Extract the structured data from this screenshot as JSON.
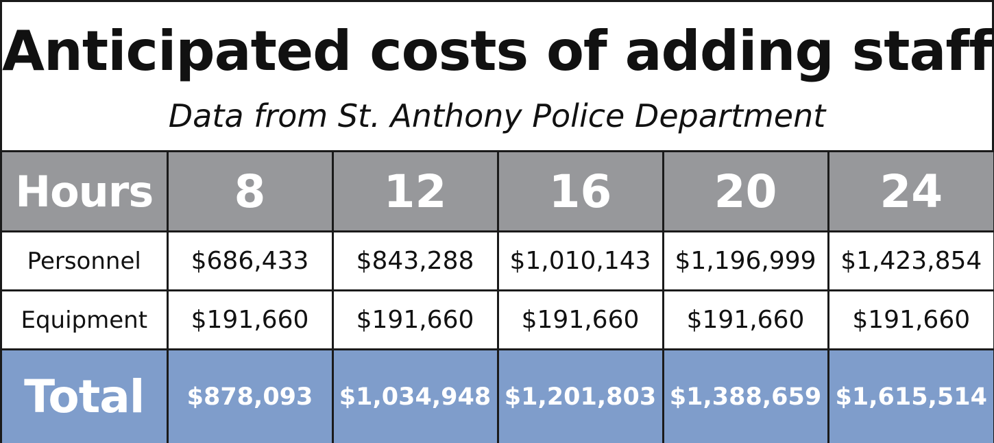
{
  "chart_data": {
    "type": "table",
    "title": "Anticipated costs of adding staff",
    "subtitle": "Data from St. Anthony Police Department",
    "header_label": "Hours",
    "columns": [
      "8",
      "12",
      "16",
      "20",
      "24"
    ],
    "rows": [
      {
        "label": "Personnel",
        "values": [
          "$686,433",
          "$843,288",
          "$1,010,143",
          "$1,196,999",
          "$1,423,854"
        ]
      },
      {
        "label": "Equipment",
        "values": [
          "$191,660",
          "$191,660",
          "$191,660",
          "$191,660",
          "$191,660"
        ]
      },
      {
        "label": "Total",
        "values": [
          "$878,093",
          "$1,034,948",
          "$1,201,803",
          "$1,388,659",
          "$1,615,514"
        ]
      }
    ],
    "numeric": {
      "hours": [
        8,
        12,
        16,
        20,
        24
      ],
      "personnel": [
        686433,
        843288,
        1010143,
        1196999,
        1423854
      ],
      "equipment": [
        191660,
        191660,
        191660,
        191660,
        191660
      ],
      "total": [
        878093,
        1034948,
        1201803,
        1388659,
        1615514
      ]
    },
    "colors": {
      "header_bg": "#97989b",
      "total_bg": "#7f9dcb",
      "body_bg": "#ffffff",
      "border": "#1a1a1a"
    }
  }
}
